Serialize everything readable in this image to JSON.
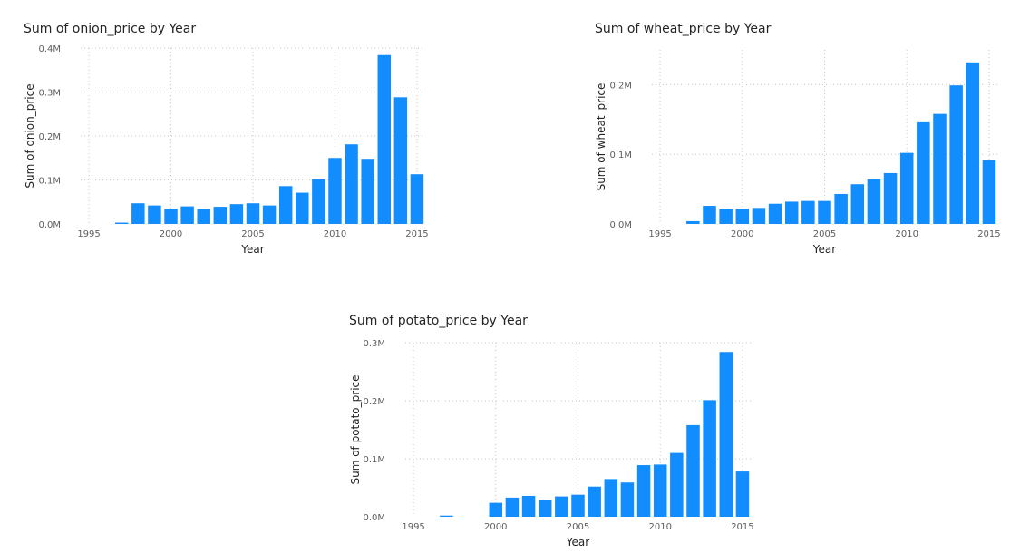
{
  "chart_data": [
    {
      "type": "bar",
      "title": "Sum of onion_price by Year",
      "xlabel": "Year",
      "ylabel": "Sum of onion_price",
      "x_ticks": [
        "1995",
        "2000",
        "2005",
        "2010",
        "2015"
      ],
      "y_ticks": [
        "0.0M",
        "0.1M",
        "0.2M",
        "0.3M",
        "0.4M"
      ],
      "xlim": [
        1994.5,
        2015.5
      ],
      "ylim": [
        0,
        0.4
      ],
      "grid": true,
      "color": "#118dff",
      "x": [
        1997,
        1998,
        1999,
        2000,
        2001,
        2002,
        2003,
        2004,
        2005,
        2006,
        2007,
        2008,
        2009,
        2010,
        2011,
        2012,
        2013,
        2014,
        2015
      ],
      "values": [
        0.003,
        0.047,
        0.042,
        0.035,
        0.04,
        0.034,
        0.039,
        0.045,
        0.047,
        0.042,
        0.086,
        0.071,
        0.101,
        0.15,
        0.181,
        0.148,
        0.384,
        0.288,
        0.113
      ]
    },
    {
      "type": "bar",
      "title": "Sum of wheat_price by Year",
      "xlabel": "Year",
      "ylabel": "Sum of wheat_price",
      "x_ticks": [
        "1995",
        "2000",
        "2005",
        "2010",
        "2015"
      ],
      "y_ticks": [
        "0.0M",
        "0.1M",
        "0.2M"
      ],
      "xlim": [
        1994.5,
        2015.5
      ],
      "ylim": [
        0,
        0.25
      ],
      "grid": true,
      "color": "#118dff",
      "x": [
        1997,
        1998,
        1999,
        2000,
        2001,
        2002,
        2003,
        2004,
        2005,
        2006,
        2007,
        2008,
        2009,
        2010,
        2011,
        2012,
        2013,
        2014,
        2015
      ],
      "values": [
        0.004,
        0.026,
        0.021,
        0.022,
        0.023,
        0.029,
        0.032,
        0.033,
        0.033,
        0.043,
        0.057,
        0.064,
        0.073,
        0.102,
        0.146,
        0.158,
        0.199,
        0.232,
        0.092
      ]
    },
    {
      "type": "bar",
      "title": "Sum of potato_price by Year",
      "xlabel": "Year",
      "ylabel": "Sum of potato_price",
      "x_ticks": [
        "1995",
        "2000",
        "2005",
        "2010",
        "2015"
      ],
      "y_ticks": [
        "0.0M",
        "0.1M",
        "0.2M",
        "0.3M"
      ],
      "xlim": [
        1994.5,
        2015.5
      ],
      "ylim": [
        0,
        0.3
      ],
      "grid": true,
      "color": "#118dff",
      "x": [
        1997,
        2000,
        2001,
        2002,
        2003,
        2004,
        2005,
        2006,
        2007,
        2008,
        2009,
        2010,
        2011,
        2012,
        2013,
        2014,
        2015
      ],
      "values": [
        0.002,
        0.024,
        0.033,
        0.036,
        0.029,
        0.035,
        0.038,
        0.052,
        0.065,
        0.059,
        0.089,
        0.09,
        0.11,
        0.158,
        0.201,
        0.284,
        0.078
      ]
    }
  ]
}
